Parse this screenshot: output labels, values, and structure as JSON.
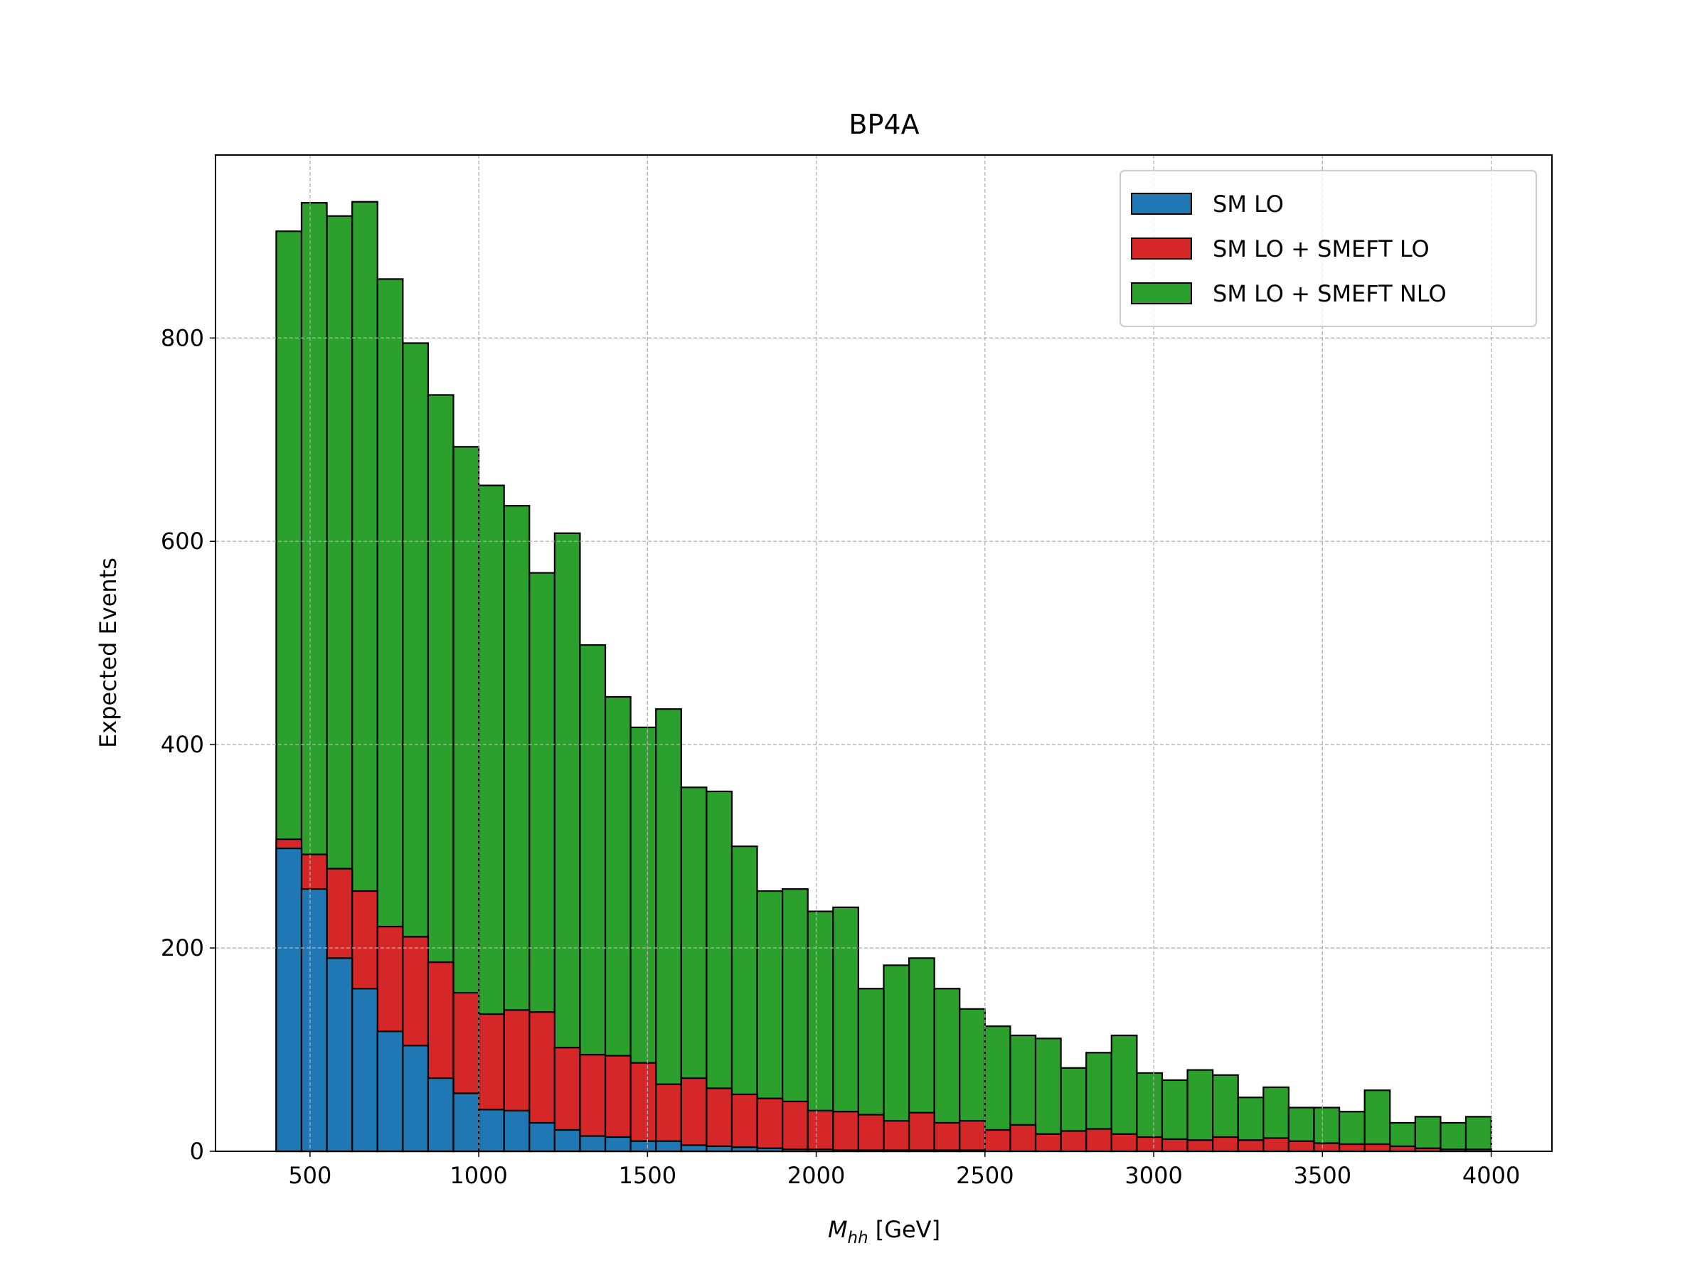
{
  "chart_data": {
    "type": "histogram",
    "title": "BP4A",
    "xlabel": {
      "symbol": "M",
      "subscript": "hh",
      "unit": "[GeV]"
    },
    "ylabel": "Expected Events",
    "bins": [
      400,
      475,
      550,
      625,
      700,
      775,
      850,
      925,
      1000,
      1075,
      1150,
      1225,
      1300,
      1375,
      1450,
      1525,
      1600,
      1675,
      1750,
      1825,
      1900,
      1975,
      2050,
      2125,
      2200,
      2275,
      2350,
      2425,
      2500,
      2575,
      2650,
      2725,
      2800,
      2875,
      2950,
      3025,
      3100,
      3175,
      3250,
      3325,
      3400,
      3475,
      3550,
      3625,
      3700,
      3775,
      3850,
      3925,
      4000
    ],
    "series": [
      {
        "name": "SM LO",
        "color": "#1f77b4",
        "values": [
          298,
          258,
          190,
          160,
          118,
          104,
          72,
          57,
          41,
          40,
          28,
          21,
          15,
          14,
          10,
          10,
          6,
          5,
          4,
          3,
          2,
          2,
          1,
          1,
          1,
          1,
          1,
          1,
          0,
          0,
          0,
          0,
          0,
          0,
          0,
          0,
          0,
          0,
          0,
          0,
          0,
          0,
          0,
          0,
          0,
          0,
          0,
          0
        ]
      },
      {
        "name": "SM LO + SMEFT LO",
        "color": "#d62728",
        "values": [
          307,
          292,
          278,
          256,
          221,
          211,
          186,
          156,
          135,
          139,
          137,
          102,
          95,
          94,
          87,
          66,
          72,
          62,
          56,
          52,
          49,
          40,
          39,
          36,
          30,
          38,
          28,
          30,
          21,
          26,
          17,
          20,
          22,
          17,
          14,
          12,
          11,
          14,
          11,
          13,
          10,
          8,
          7,
          7,
          5,
          3,
          2,
          2
        ]
      },
      {
        "name": "SM LO + SMEFT NLO",
        "color": "#2ca02c",
        "values": [
          905,
          933,
          920,
          934,
          858,
          795,
          744,
          693,
          655,
          635,
          569,
          608,
          498,
          447,
          417,
          435,
          358,
          354,
          300,
          256,
          258,
          236,
          240,
          160,
          183,
          190,
          160,
          140,
          123,
          114,
          111,
          82,
          97,
          114,
          77,
          70,
          80,
          75,
          53,
          63,
          43,
          43,
          39,
          60,
          28,
          34,
          28,
          34
        ]
      }
    ],
    "xlim": [
      220,
      4180
    ],
    "ylim": [
      0,
      980
    ],
    "xticks": [
      500,
      1000,
      1500,
      2000,
      2500,
      3000,
      3500,
      4000
    ],
    "yticks": [
      0,
      200,
      400,
      600,
      800
    ],
    "grid": true,
    "legend": "upper right"
  }
}
